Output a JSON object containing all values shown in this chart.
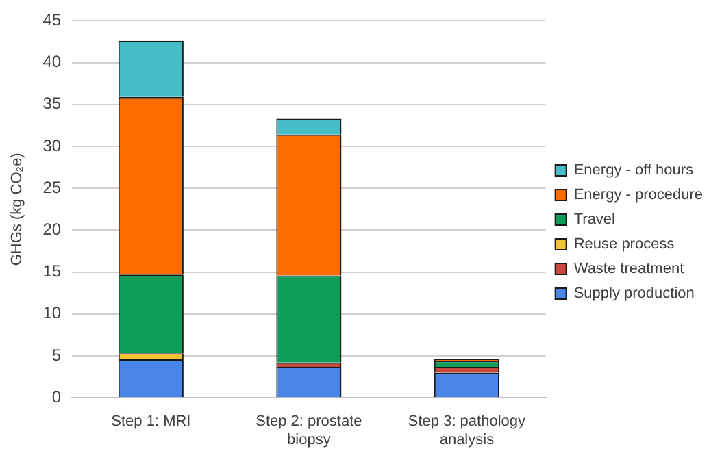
{
  "chart_data": {
    "type": "bar",
    "ylabel": "GHGs (kg CO₂e)",
    "categories": [
      "Step 1: MRI",
      "Step 2: prostate biopsy",
      "Step 3: pathology analysis"
    ],
    "stacked": true,
    "ylim": [
      0,
      45
    ],
    "yticks": [
      0,
      5,
      10,
      15,
      20,
      25,
      30,
      35,
      40,
      45
    ],
    "grid": "y",
    "legend": "right",
    "series": [
      {
        "name": "Supply production",
        "color": "#4a86e8",
        "values": [
          4.6,
          3.7,
          3.0
        ]
      },
      {
        "name": "Waste treatment",
        "color": "#c9473d",
        "values": [
          null,
          0.5,
          0.7
        ]
      },
      {
        "name": "Reuse process",
        "color": "#f1c232",
        "values": [
          0.7,
          0,
          0
        ]
      },
      {
        "name": "Travel",
        "color": "#109d59",
        "values": [
          9.4,
          10.4,
          0.7
        ]
      },
      {
        "name": "Energy - procedure",
        "color": "#ff6d01",
        "values": [
          21.2,
          16.8,
          0.2
        ]
      },
      {
        "name": "Energy - off hours",
        "color": "#46bdc6",
        "values": [
          6.7,
          1.9,
          0
        ]
      }
    ]
  }
}
